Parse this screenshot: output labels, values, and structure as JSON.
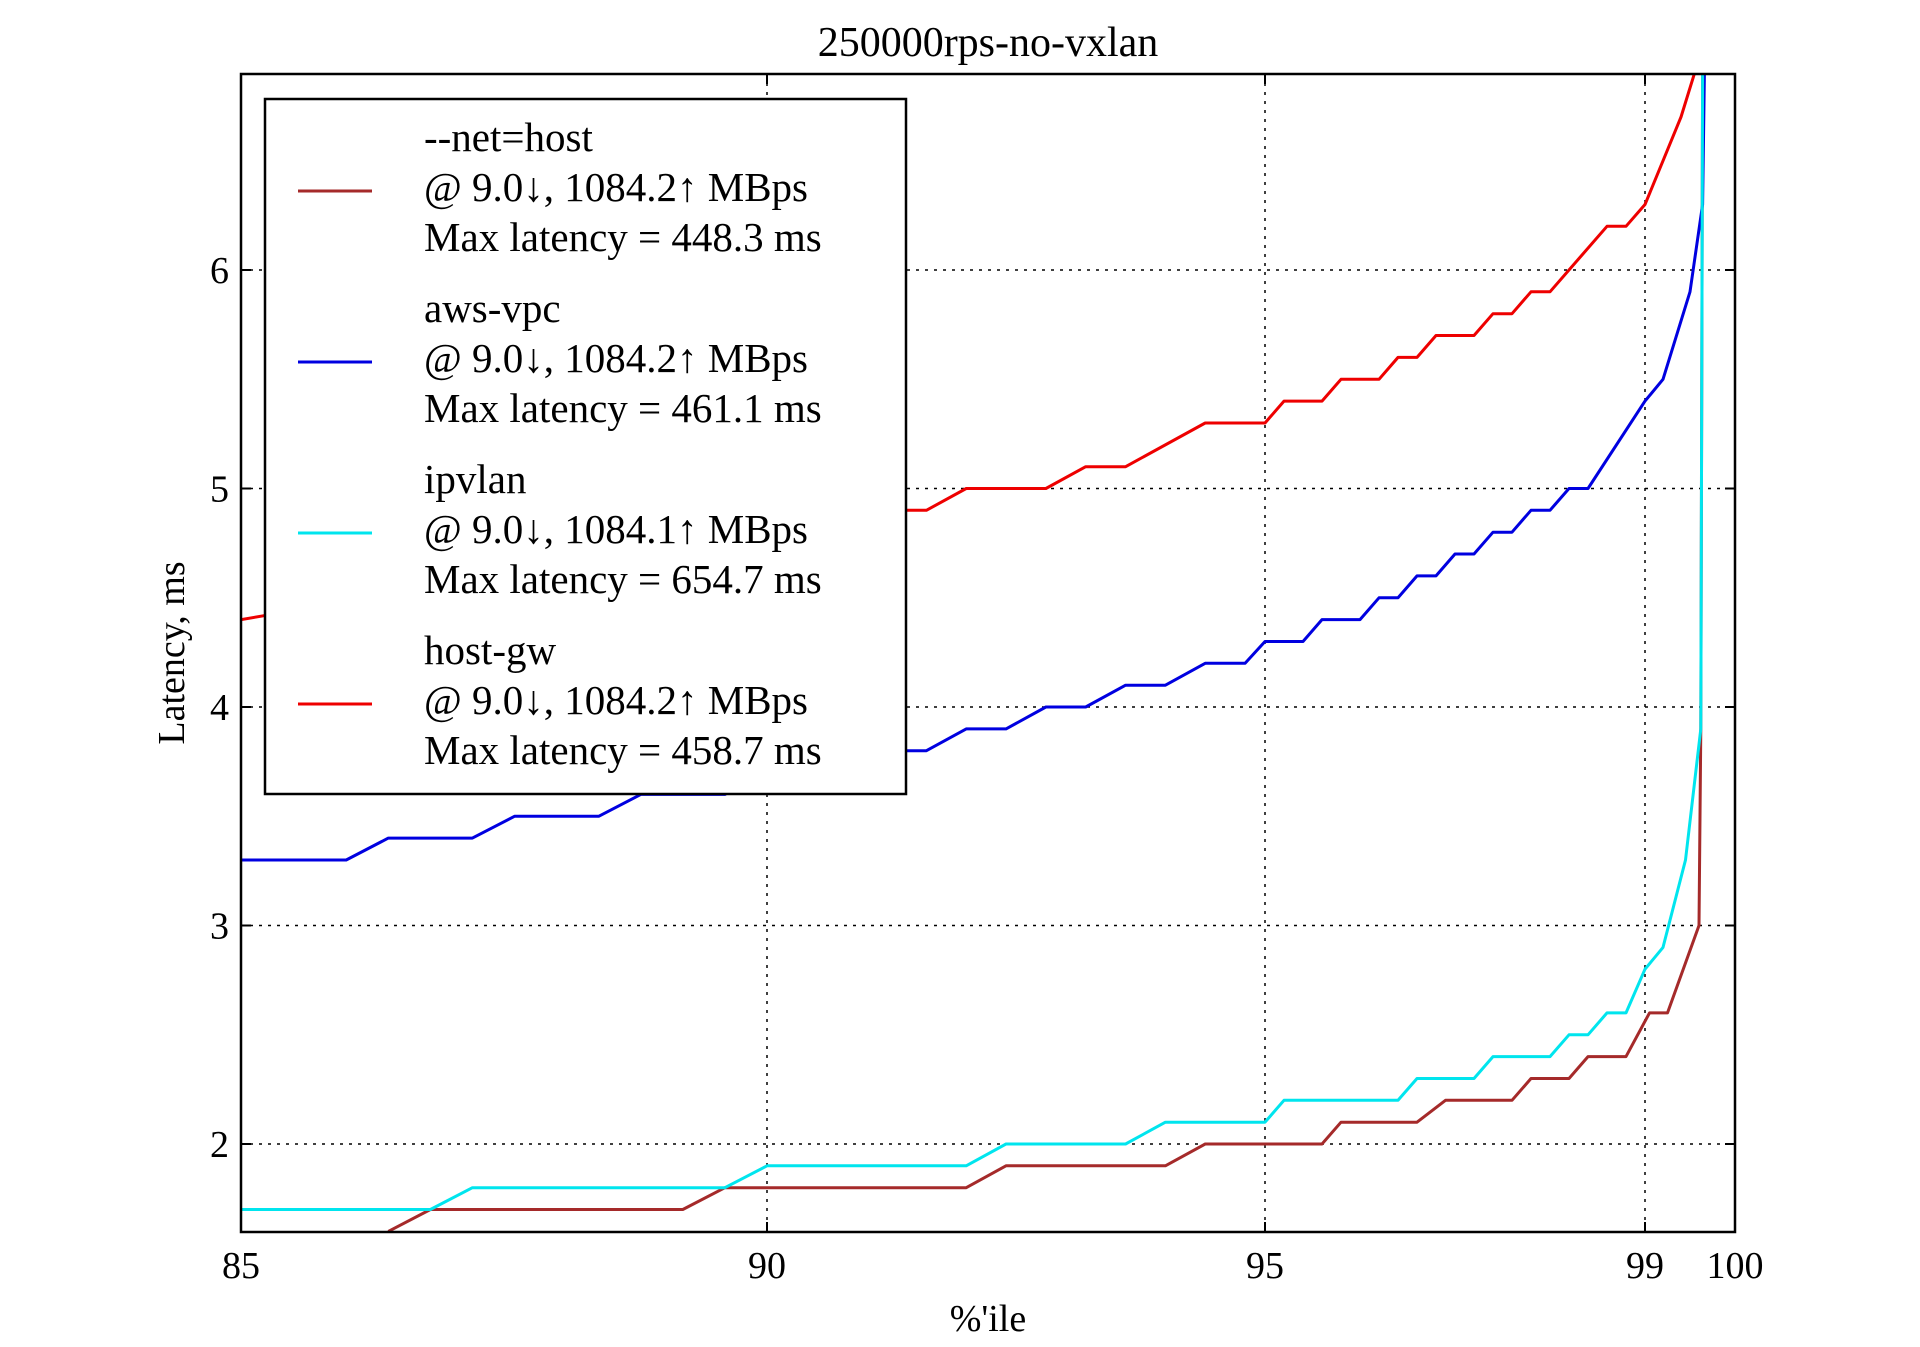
{
  "chart_data": {
    "type": "line",
    "title": "250000rps-no-vxlan",
    "xlabel": "%'ile",
    "ylabel": "Latency, ms",
    "x_ticks": [
      {
        "value": 85,
        "label": "85"
      },
      {
        "value": 90,
        "label": "90"
      },
      {
        "value": 95,
        "label": "95"
      },
      {
        "value": 99,
        "label": "99"
      },
      {
        "value": 100,
        "label": "100"
      }
    ],
    "y_ticks": [
      {
        "value": 2,
        "label": "2"
      },
      {
        "value": 3,
        "label": "3"
      },
      {
        "value": 4,
        "label": "4"
      },
      {
        "value": 5,
        "label": "5"
      },
      {
        "value": 6,
        "label": "6"
      }
    ],
    "ylim": [
      1.6,
      6.9
    ],
    "grid": true,
    "legend_position": "top-left",
    "series": [
      {
        "name": "--net=host",
        "legend": [
          "--net=host",
          "@ 9.0↓, 1084.2↑ MBps",
          "Max latency = 448.3 ms"
        ],
        "color": "#a52a2a",
        "points": [
          [
            86.4,
            1.6
          ],
          [
            86.8,
            1.7
          ],
          [
            89.2,
            1.7
          ],
          [
            89.6,
            1.8
          ],
          [
            92.0,
            1.8
          ],
          [
            92.4,
            1.9
          ],
          [
            94.0,
            1.9
          ],
          [
            94.4,
            2.0
          ],
          [
            95.6,
            2.0
          ],
          [
            95.8,
            2.1
          ],
          [
            96.6,
            2.1
          ],
          [
            96.9,
            2.2
          ],
          [
            97.6,
            2.2
          ],
          [
            97.8,
            2.3
          ],
          [
            98.2,
            2.3
          ],
          [
            98.4,
            2.4
          ],
          [
            98.8,
            2.4
          ],
          [
            99.05,
            2.6
          ],
          [
            99.25,
            2.6
          ],
          [
            99.6,
            3.0
          ],
          [
            99.62,
            3.9
          ],
          [
            99.64,
            6.9
          ]
        ]
      },
      {
        "name": "aws-vpc",
        "legend": [
          "aws-vpc",
          "@ 9.0↓, 1084.2↑ MBps",
          "Max latency = 461.1 ms"
        ],
        "color": "#0000e0",
        "points": [
          [
            85.0,
            3.3
          ],
          [
            86.0,
            3.3
          ],
          [
            86.4,
            3.4
          ],
          [
            87.2,
            3.4
          ],
          [
            87.6,
            3.5
          ],
          [
            88.4,
            3.5
          ],
          [
            88.8,
            3.6
          ],
          [
            89.6,
            3.6
          ],
          [
            90.0,
            3.7
          ],
          [
            90.8,
            3.7
          ],
          [
            91.2,
            3.8
          ],
          [
            91.6,
            3.8
          ],
          [
            92.0,
            3.9
          ],
          [
            92.4,
            3.9
          ],
          [
            92.8,
            4.0
          ],
          [
            93.2,
            4.0
          ],
          [
            93.6,
            4.1
          ],
          [
            94.0,
            4.1
          ],
          [
            94.4,
            4.2
          ],
          [
            94.8,
            4.2
          ],
          [
            95.0,
            4.3
          ],
          [
            95.4,
            4.3
          ],
          [
            95.6,
            4.4
          ],
          [
            96.0,
            4.4
          ],
          [
            96.2,
            4.5
          ],
          [
            96.4,
            4.5
          ],
          [
            96.6,
            4.6
          ],
          [
            96.8,
            4.6
          ],
          [
            97.0,
            4.7
          ],
          [
            97.2,
            4.7
          ],
          [
            97.4,
            4.8
          ],
          [
            97.6,
            4.8
          ],
          [
            97.8,
            4.9
          ],
          [
            98.0,
            4.9
          ],
          [
            98.2,
            5.0
          ],
          [
            98.4,
            5.0
          ],
          [
            99.0,
            5.4
          ],
          [
            99.2,
            5.5
          ],
          [
            99.5,
            5.9
          ],
          [
            99.64,
            6.3
          ],
          [
            99.66,
            6.9
          ]
        ]
      },
      {
        "name": "ipvlan",
        "legend": [
          "ipvlan",
          "@ 9.0↓, 1084.1↑ MBps",
          "Max latency = 654.7 ms"
        ],
        "color": "#00e5ee",
        "points": [
          [
            85.0,
            1.7
          ],
          [
            86.8,
            1.7
          ],
          [
            87.2,
            1.8
          ],
          [
            89.6,
            1.8
          ],
          [
            90.0,
            1.9
          ],
          [
            92.0,
            1.9
          ],
          [
            92.4,
            2.0
          ],
          [
            93.6,
            2.0
          ],
          [
            94.0,
            2.1
          ],
          [
            95.0,
            2.1
          ],
          [
            95.2,
            2.2
          ],
          [
            96.4,
            2.2
          ],
          [
            96.6,
            2.3
          ],
          [
            97.2,
            2.3
          ],
          [
            97.4,
            2.4
          ],
          [
            98.0,
            2.4
          ],
          [
            98.2,
            2.5
          ],
          [
            98.4,
            2.5
          ],
          [
            98.6,
            2.6
          ],
          [
            98.8,
            2.6
          ],
          [
            99.0,
            2.8
          ],
          [
            99.2,
            2.9
          ],
          [
            99.45,
            3.3
          ],
          [
            99.62,
            3.9
          ],
          [
            99.64,
            6.9
          ]
        ]
      },
      {
        "name": "host-gw",
        "legend": [
          "host-gw",
          "@ 9.0↓, 1084.2↑ MBps",
          "Max latency = 458.7 ms"
        ],
        "color": "#ee0000",
        "points": [
          [
            85.0,
            4.4
          ],
          [
            91.2,
            4.9
          ],
          [
            91.6,
            4.9
          ],
          [
            92.0,
            5.0
          ],
          [
            92.8,
            5.0
          ],
          [
            93.2,
            5.1
          ],
          [
            93.6,
            5.1
          ],
          [
            94.4,
            5.3
          ],
          [
            95.0,
            5.3
          ],
          [
            95.2,
            5.4
          ],
          [
            95.6,
            5.4
          ],
          [
            95.8,
            5.5
          ],
          [
            96.2,
            5.5
          ],
          [
            96.4,
            5.6
          ],
          [
            96.6,
            5.6
          ],
          [
            96.8,
            5.7
          ],
          [
            97.2,
            5.7
          ],
          [
            97.4,
            5.8
          ],
          [
            97.6,
            5.8
          ],
          [
            97.8,
            5.9
          ],
          [
            98.0,
            5.9
          ],
          [
            98.6,
            6.2
          ],
          [
            98.8,
            6.2
          ],
          [
            99.0,
            6.3
          ],
          [
            99.2,
            6.5
          ],
          [
            99.4,
            6.7
          ],
          [
            99.55,
            6.9
          ]
        ]
      }
    ]
  }
}
